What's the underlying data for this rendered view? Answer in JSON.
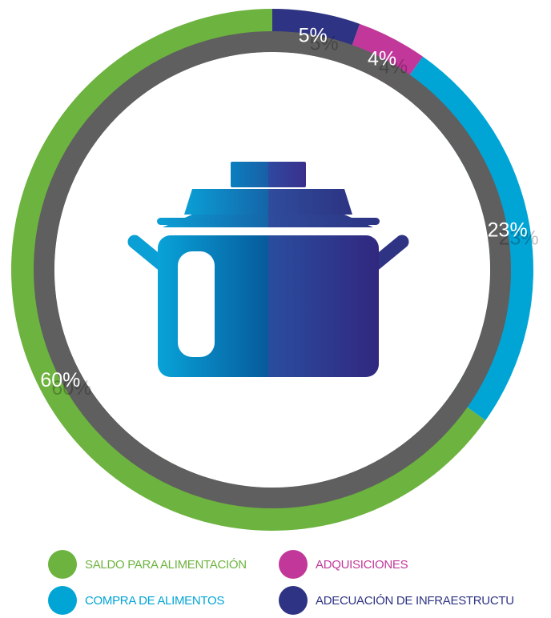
{
  "chart_data": {
    "type": "pie",
    "variant": "donut",
    "series": [
      {
        "name": "SALDO PARA ALIMENTACIÓN",
        "value": 60,
        "label": "60%",
        "color": "#6db33f"
      },
      {
        "name": "COMPRA DE ALIMENTOS",
        "value": 23,
        "label": "23%",
        "color": "#00a5d6"
      },
      {
        "name": "ADQUISICIONES",
        "value": 4,
        "label": "4%",
        "color": "#c1389a"
      },
      {
        "name": "ADECUACIÓN DE INFRAESTRUCTU",
        "value": 5,
        "label": "5%",
        "color": "#2e3383"
      }
    ],
    "legend_position": "bottom",
    "center_icon": "cooking-pot-icon",
    "ring_color": "#5f5f5f"
  },
  "legend": {
    "items": [
      {
        "label": "SALDO PARA ALIMENTACIÓN",
        "color": "#6db33f",
        "text_color": "#6db33f"
      },
      {
        "label": "ADQUISICIONES",
        "color": "#c1389a",
        "text_color": "#c1389a"
      },
      {
        "label": "COMPRA DE ALIMENTOS",
        "color": "#00a5d6",
        "text_color": "#00a5d6"
      },
      {
        "label": "ADECUACIÓN DE INFRAESTRUCTU",
        "color": "#2e3383",
        "text_color": "#2e3383"
      }
    ]
  }
}
